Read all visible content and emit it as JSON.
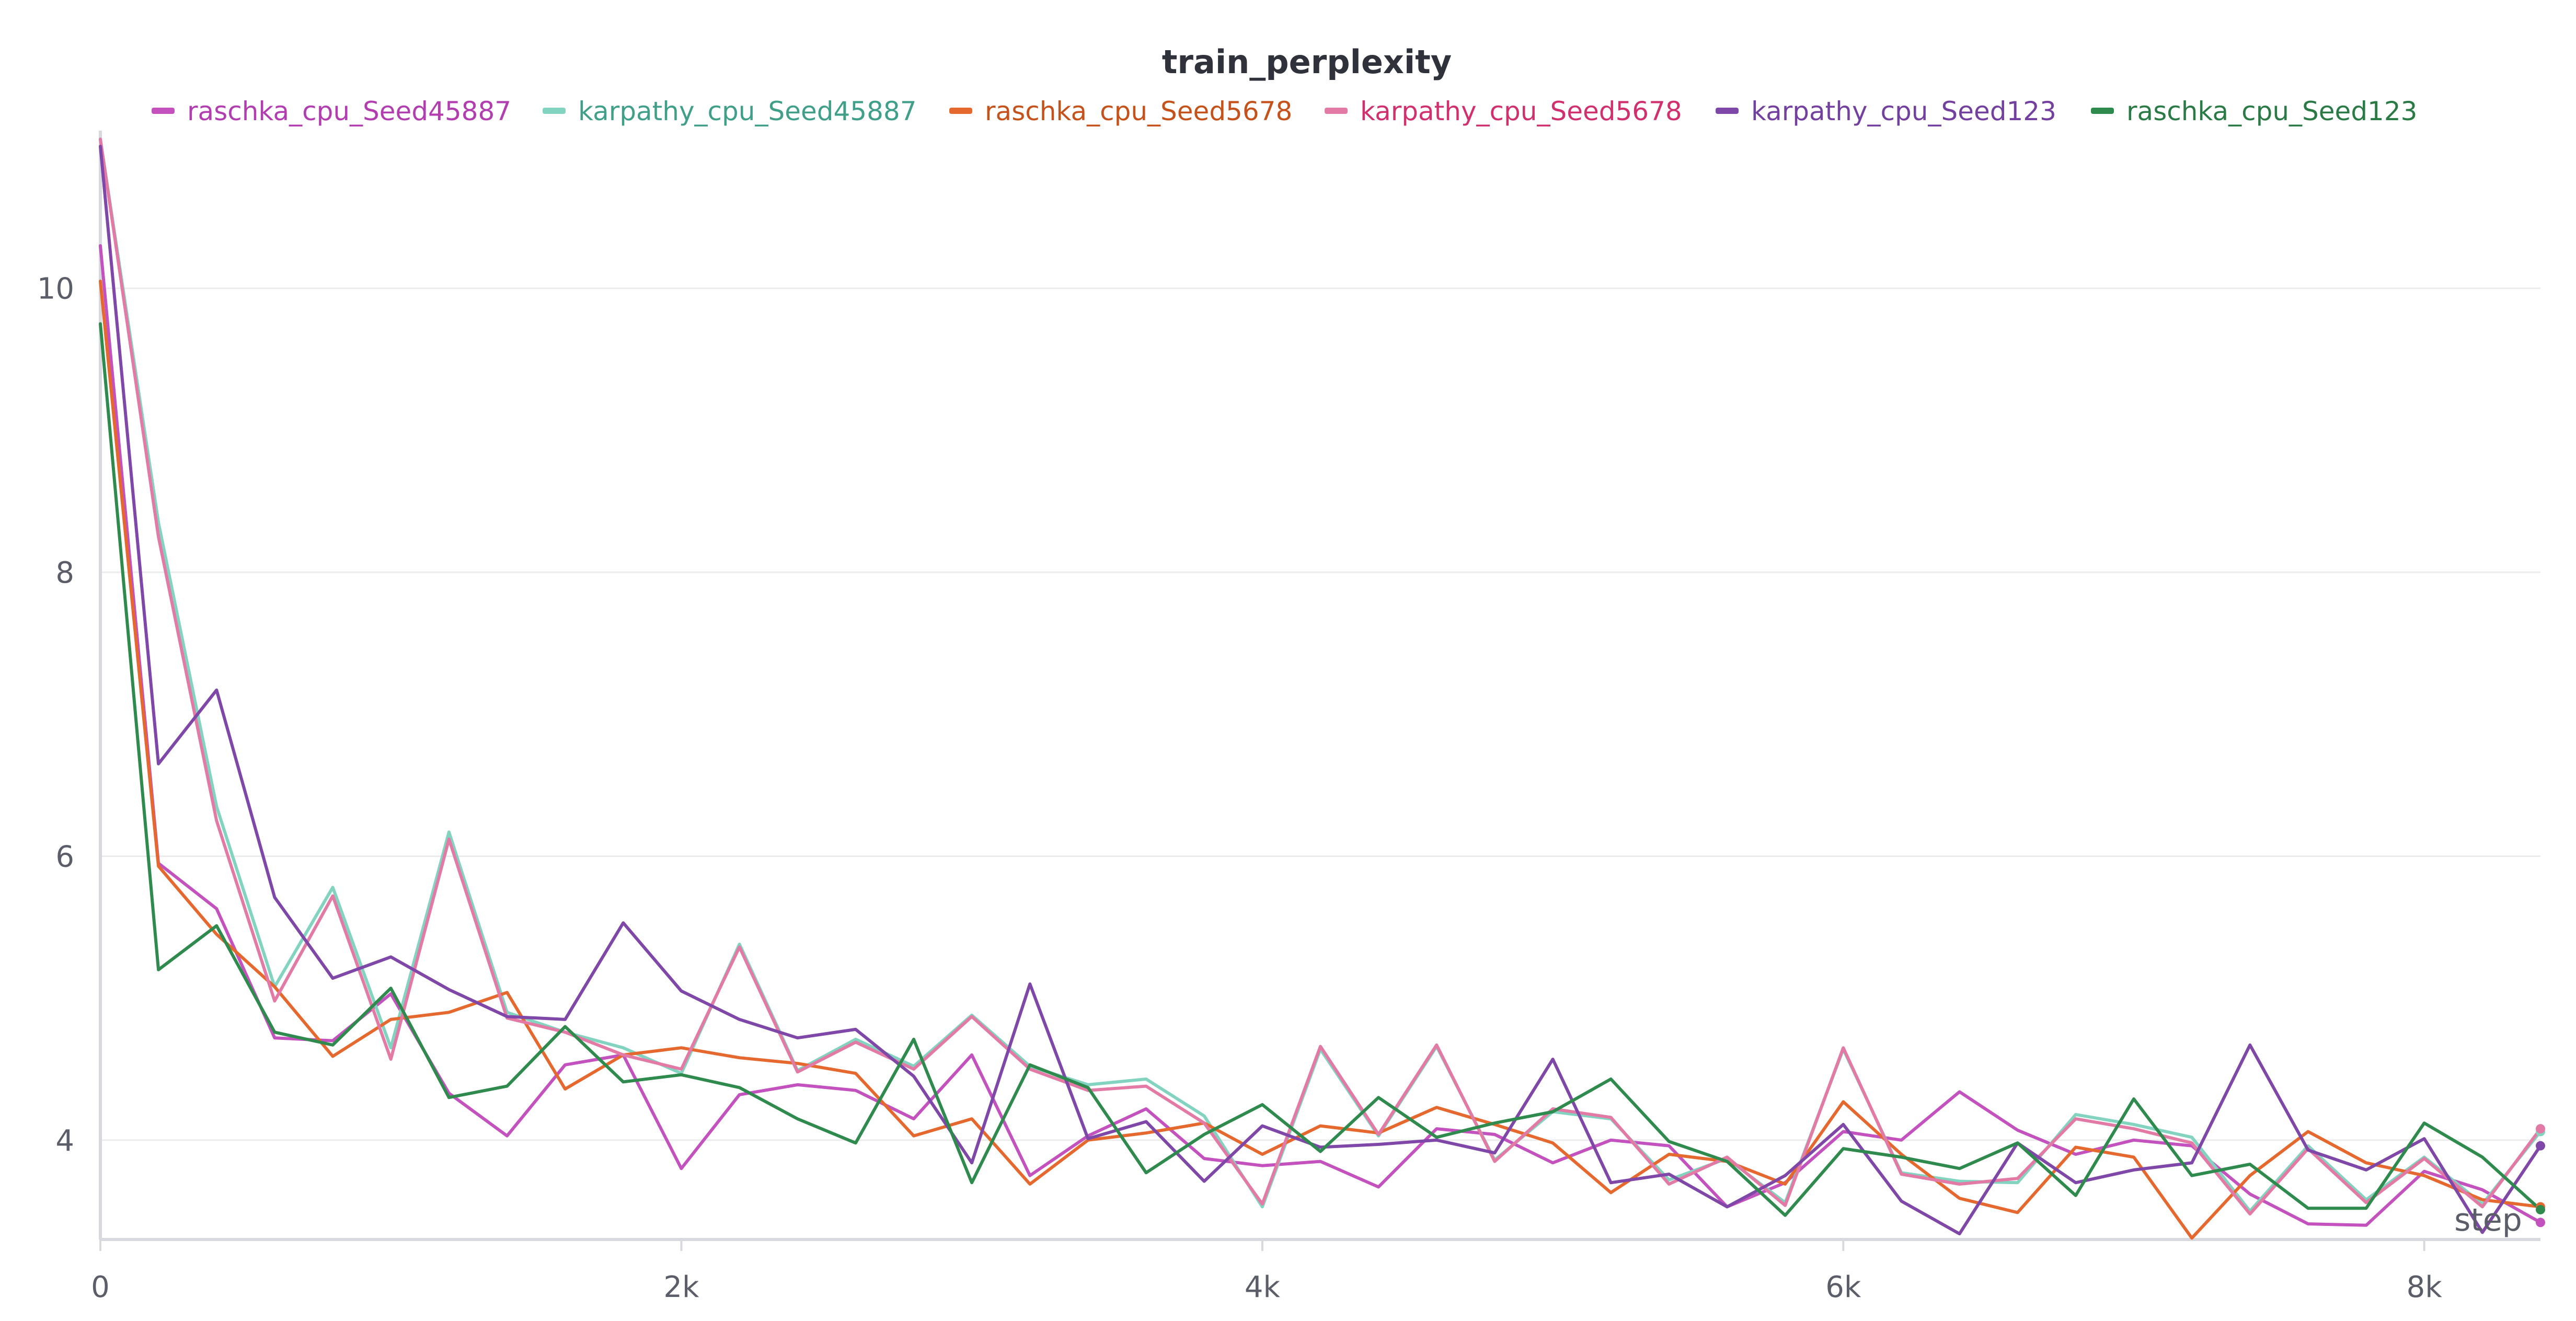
{
  "chart_data": {
    "type": "line",
    "title": "train_perplexity",
    "xlabel": "step",
    "ylabel": "",
    "xlim": [
      0,
      8400
    ],
    "ylim": [
      3.3,
      11.0
    ],
    "yticks": [
      4,
      6,
      8,
      10
    ],
    "ytick_labels": [
      "4",
      "6",
      "8",
      "10"
    ],
    "xticks": [
      0,
      2000,
      4000,
      6000,
      8000
    ],
    "xtick_labels": [
      "0",
      "2k",
      "4k",
      "6k",
      "8k"
    ],
    "grid": true,
    "legend_position": "top",
    "x": [
      0,
      200,
      400,
      600,
      800,
      1000,
      1200,
      1400,
      1600,
      1800,
      2000,
      2200,
      2400,
      2600,
      2800,
      3000,
      3200,
      3400,
      3600,
      3800,
      4000,
      4200,
      4400,
      4600,
      4800,
      5000,
      5200,
      5400,
      5600,
      5800,
      6000,
      6200,
      6400,
      6600,
      6800,
      7000,
      7200,
      7400,
      7600,
      7800,
      8000,
      8200,
      8400
    ],
    "series": [
      {
        "name": "raschka_cpu_Seed45887",
        "color": "#c352bf",
        "label_color": "#b23db0",
        "values": [
          10.3,
          5.95,
          5.63,
          4.72,
          4.7,
          5.03,
          4.33,
          4.03,
          4.53,
          4.6,
          3.8,
          4.32,
          4.39,
          4.35,
          4.15,
          4.6,
          3.75,
          4.03,
          4.22,
          3.87,
          3.82,
          3.85,
          3.67,
          4.08,
          4.04,
          3.84,
          4.0,
          3.96,
          3.53,
          3.7,
          4.06,
          4.0,
          4.34,
          4.07,
          3.9,
          4.0,
          3.96,
          3.62,
          3.41,
          3.4,
          3.78,
          3.65,
          3.42
        ]
      },
      {
        "name": "karpathy_cpu_Seed45887",
        "color": "#82d3c0",
        "label_color": "#3f9f88",
        "values": [
          11.05,
          8.35,
          6.35,
          5.08,
          5.78,
          4.65,
          6.17,
          4.9,
          4.76,
          4.65,
          4.47,
          5.38,
          4.49,
          4.71,
          4.52,
          4.88,
          4.52,
          4.39,
          4.43,
          4.17,
          3.53,
          4.64,
          4.03,
          4.66,
          3.86,
          4.2,
          4.15,
          3.72,
          3.87,
          3.56,
          4.64,
          3.77,
          3.71,
          3.7,
          4.18,
          4.11,
          4.02,
          3.5,
          3.96,
          3.58,
          3.88,
          3.55,
          4.06
        ]
      },
      {
        "name": "raschka_cpu_Seed5678",
        "color": "#e5692f",
        "label_color": "#c4521a",
        "values": [
          10.05,
          5.93,
          5.45,
          5.08,
          4.59,
          4.85,
          4.9,
          5.04,
          4.36,
          4.6,
          4.65,
          4.58,
          4.54,
          4.47,
          4.03,
          4.15,
          3.69,
          4.0,
          4.05,
          4.12,
          3.9,
          4.1,
          4.05,
          4.23,
          4.11,
          3.98,
          3.63,
          3.9,
          3.85,
          3.69,
          4.27,
          3.9,
          3.59,
          3.49,
          3.95,
          3.88,
          3.31,
          3.75,
          4.06,
          3.84,
          3.75,
          3.58,
          3.53
        ]
      },
      {
        "name": "karpathy_cpu_Seed5678",
        "color": "#e27aa5",
        "label_color": "#d1306f",
        "values": [
          11.05,
          8.25,
          6.25,
          4.98,
          5.72,
          4.57,
          6.12,
          4.86,
          4.76,
          4.6,
          4.5,
          5.36,
          4.48,
          4.69,
          4.5,
          4.87,
          4.5,
          4.35,
          4.38,
          4.12,
          3.55,
          4.66,
          4.04,
          4.67,
          3.85,
          4.22,
          4.16,
          3.69,
          3.88,
          3.54,
          4.65,
          3.76,
          3.69,
          3.73,
          4.15,
          4.08,
          3.98,
          3.48,
          3.94,
          3.56,
          3.87,
          3.53,
          4.08
        ]
      },
      {
        "name": "karpathy_cpu_Seed123",
        "color": "#7f47a8",
        "label_color": "#7340a0",
        "values": [
          11.0,
          6.65,
          7.17,
          5.71,
          5.14,
          5.29,
          5.06,
          4.87,
          4.85,
          5.53,
          5.05,
          4.85,
          4.72,
          4.78,
          4.45,
          3.84,
          5.1,
          4.01,
          4.13,
          3.71,
          4.1,
          3.95,
          3.97,
          4.0,
          3.91,
          4.57,
          3.7,
          3.76,
          3.53,
          3.75,
          4.11,
          3.57,
          3.34,
          3.98,
          3.7,
          3.79,
          3.84,
          4.67,
          3.93,
          3.79,
          4.01,
          3.35,
          3.96
        ]
      },
      {
        "name": "raschka_cpu_Seed123",
        "color": "#2f8a4d",
        "label_color": "#2a7a45",
        "values": [
          9.75,
          5.2,
          5.51,
          4.76,
          4.67,
          5.07,
          4.3,
          4.38,
          4.8,
          4.41,
          4.46,
          4.37,
          4.15,
          3.98,
          4.71,
          3.7,
          4.53,
          4.37,
          3.77,
          4.04,
          4.25,
          3.92,
          4.3,
          4.02,
          4.12,
          4.2,
          4.43,
          3.99,
          3.85,
          3.47,
          3.94,
          3.88,
          3.8,
          3.98,
          3.61,
          4.29,
          3.75,
          3.83,
          3.52,
          3.52,
          4.12,
          3.88,
          3.51
        ]
      }
    ]
  }
}
